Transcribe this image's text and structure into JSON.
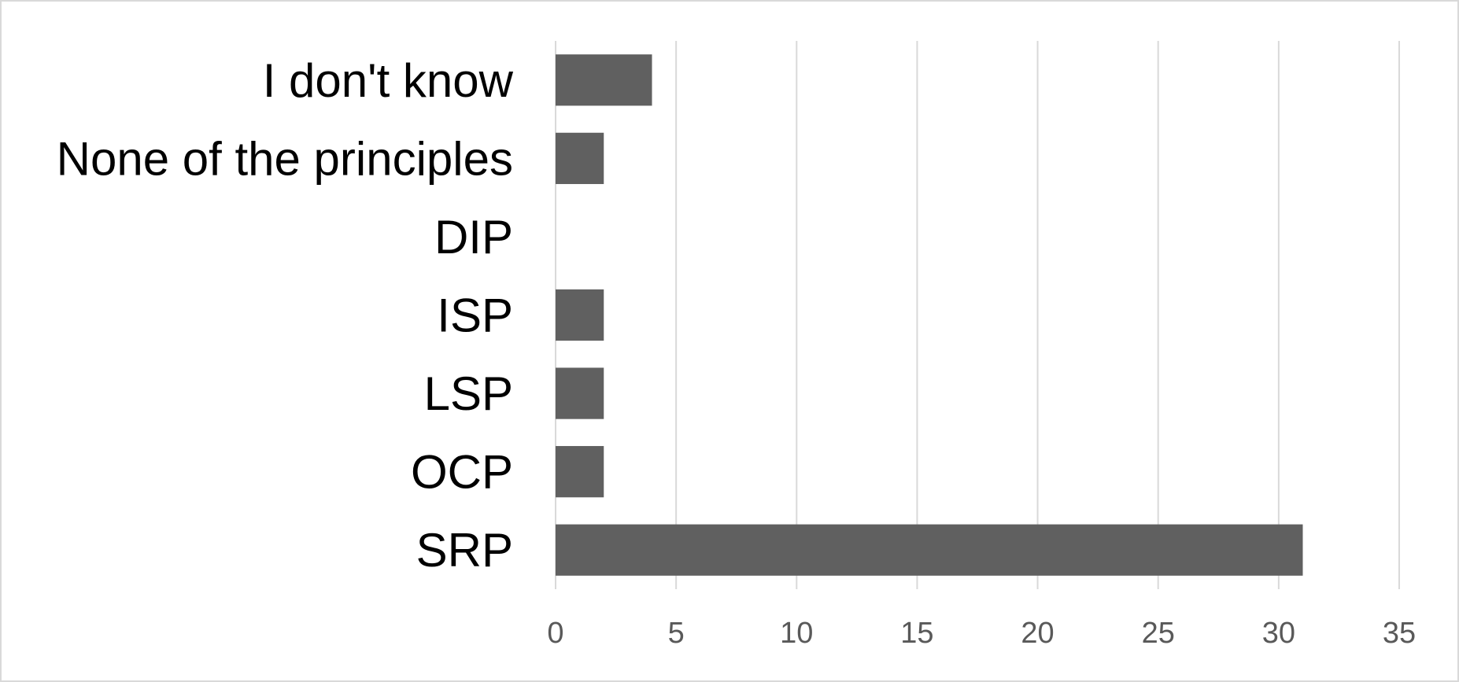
{
  "chart_data": {
    "type": "bar",
    "orientation": "horizontal",
    "title": "",
    "xlabel": "",
    "ylabel": "",
    "categories": [
      "I don't know",
      "None of the principles",
      "DIP",
      "ISP",
      "LSP",
      "OCP",
      "SRP"
    ],
    "values": [
      4,
      2,
      0,
      2,
      2,
      2,
      31
    ],
    "xlim": [
      0,
      35
    ],
    "xticks": [
      0,
      5,
      10,
      15,
      20,
      25,
      30,
      35
    ],
    "grid": "vertical",
    "legend": "none",
    "bar_color": "#606060",
    "grid_color": "#d9d9d9",
    "tick_color": "#595959"
  }
}
